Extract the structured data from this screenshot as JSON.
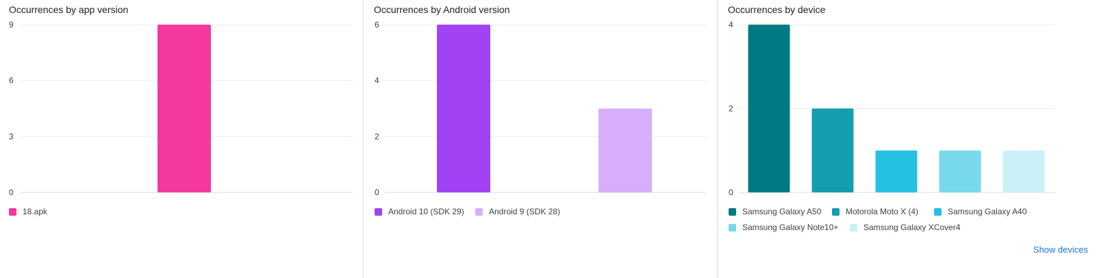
{
  "panels": {
    "app": {
      "title": "Occurrences by app version"
    },
    "android": {
      "title": "Occurrences by Android version"
    },
    "device": {
      "title": "Occurrences by device",
      "show_devices_label": "Show devices"
    }
  },
  "chart_data": [
    {
      "type": "bar",
      "title": "Occurrences by app version",
      "categories": [
        "18.apk"
      ],
      "values": [
        9
      ],
      "colors": [
        "#f538a0"
      ],
      "ylim": [
        0,
        9
      ],
      "yticks": [
        0,
        3,
        6,
        9
      ],
      "grid": true,
      "legend": "bottom-left"
    },
    {
      "type": "bar",
      "title": "Occurrences by Android version",
      "categories": [
        "Android 10 (SDK 29)",
        "Android 9 (SDK 28)"
      ],
      "values": [
        6,
        3
      ],
      "colors": [
        "#a142f4",
        "#d7aefb"
      ],
      "ylim": [
        0,
        6
      ],
      "yticks": [
        0,
        2,
        4,
        6
      ],
      "grid": true,
      "legend": "bottom-left"
    },
    {
      "type": "bar",
      "title": "Occurrences by device",
      "categories": [
        "Samsung Galaxy A50",
        "Motorola Moto X (4)",
        "Samsung Galaxy A40",
        "Samsung Galaxy Note10+",
        "Samsung Galaxy XCover4"
      ],
      "values": [
        4,
        2,
        1,
        1,
        1
      ],
      "colors": [
        "#007b83",
        "#129eaf",
        "#24c1e0",
        "#78d9ec",
        "#cbf0f8"
      ],
      "ylim": [
        0,
        4
      ],
      "yticks": [
        0,
        2,
        4
      ],
      "grid": true,
      "legend": "bottom-left"
    }
  ]
}
